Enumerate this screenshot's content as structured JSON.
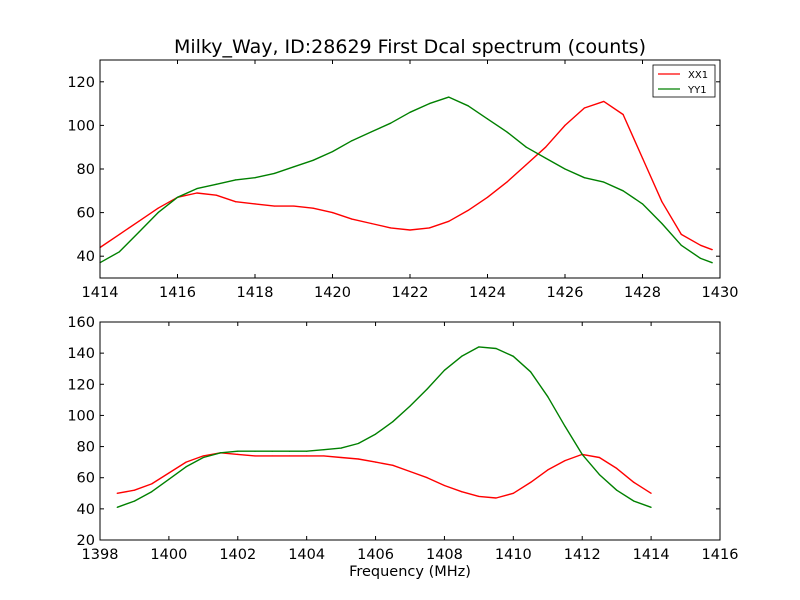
{
  "chart_data": [
    {
      "type": "line",
      "title": "Milky_Way, ID:28629 First Dcal spectrum (counts)",
      "xlabel": "",
      "ylabel": "",
      "xlim": [
        1414,
        1430
      ],
      "ylim": [
        30,
        130
      ],
      "xticks": [
        1414,
        1416,
        1418,
        1420,
        1422,
        1424,
        1426,
        1428,
        1430
      ],
      "yticks": [
        40,
        60,
        80,
        100,
        120
      ],
      "grid": false,
      "legend": "top-right",
      "series": [
        {
          "name": "XX1",
          "color": "#ff0000",
          "x": [
            1414.0,
            1414.5,
            1415.0,
            1415.5,
            1416.0,
            1416.5,
            1417.0,
            1417.5,
            1418.0,
            1418.5,
            1419.0,
            1419.5,
            1420.0,
            1420.5,
            1421.0,
            1421.5,
            1422.0,
            1422.5,
            1423.0,
            1423.5,
            1424.0,
            1424.5,
            1425.0,
            1425.5,
            1426.0,
            1426.5,
            1427.0,
            1427.5,
            1428.0,
            1428.5,
            1429.0,
            1429.5,
            1429.8
          ],
          "values": [
            44,
            50,
            56,
            62,
            67,
            69,
            68,
            65,
            64,
            63,
            63,
            62,
            60,
            57,
            55,
            53,
            52,
            53,
            56,
            61,
            67,
            74,
            82,
            90,
            100,
            108,
            111,
            105,
            85,
            65,
            50,
            45,
            43
          ]
        },
        {
          "name": "YY1",
          "color": "#008000",
          "x": [
            1414.0,
            1414.5,
            1415.0,
            1415.5,
            1416.0,
            1416.5,
            1417.0,
            1417.5,
            1418.0,
            1418.5,
            1419.0,
            1419.5,
            1420.0,
            1420.5,
            1421.0,
            1421.5,
            1422.0,
            1422.5,
            1423.0,
            1423.5,
            1424.0,
            1424.5,
            1425.0,
            1425.5,
            1426.0,
            1426.5,
            1427.0,
            1427.5,
            1428.0,
            1428.5,
            1429.0,
            1429.5,
            1429.8
          ],
          "values": [
            37,
            42,
            51,
            60,
            67,
            71,
            73,
            75,
            76,
            78,
            81,
            84,
            88,
            93,
            97,
            101,
            106,
            110,
            113,
            109,
            103,
            97,
            90,
            85,
            80,
            76,
            74,
            70,
            64,
            55,
            45,
            39,
            37
          ]
        }
      ]
    },
    {
      "type": "line",
      "title": "",
      "xlabel": "Frequency (MHz)",
      "ylabel": "",
      "xlim": [
        1398,
        1416
      ],
      "ylim": [
        20,
        160
      ],
      "xticks": [
        1398,
        1400,
        1402,
        1404,
        1406,
        1408,
        1410,
        1412,
        1414,
        1416
      ],
      "yticks": [
        20,
        40,
        60,
        80,
        100,
        120,
        140,
        160
      ],
      "grid": false,
      "series": [
        {
          "color": "#ff0000",
          "x": [
            1398.5,
            1399.0,
            1399.5,
            1400.0,
            1400.5,
            1401.0,
            1401.5,
            1402.0,
            1402.5,
            1403.0,
            1403.5,
            1404.0,
            1404.5,
            1405.0,
            1405.5,
            1406.0,
            1406.5,
            1407.0,
            1407.5,
            1408.0,
            1408.5,
            1409.0,
            1409.5,
            1410.0,
            1410.5,
            1411.0,
            1411.5,
            1412.0,
            1412.5,
            1413.0,
            1413.5,
            1414.0
          ],
          "values": [
            50,
            52,
            56,
            63,
            70,
            74,
            76,
            75,
            74,
            74,
            74,
            74,
            74,
            73,
            72,
            70,
            68,
            64,
            60,
            55,
            51,
            48,
            47,
            50,
            57,
            65,
            71,
            75,
            73,
            66,
            57,
            50
          ]
        },
        {
          "color": "#008000",
          "x": [
            1398.5,
            1399.0,
            1399.5,
            1400.0,
            1400.5,
            1401.0,
            1401.5,
            1402.0,
            1402.5,
            1403.0,
            1403.5,
            1404.0,
            1404.5,
            1405.0,
            1405.5,
            1406.0,
            1406.5,
            1407.0,
            1407.5,
            1408.0,
            1408.5,
            1409.0,
            1409.5,
            1410.0,
            1410.5,
            1411.0,
            1411.5,
            1412.0,
            1412.5,
            1413.0,
            1413.5,
            1414.0
          ],
          "values": [
            41,
            45,
            51,
            59,
            67,
            73,
            76,
            77,
            77,
            77,
            77,
            77,
            78,
            79,
            82,
            88,
            96,
            106,
            117,
            129,
            138,
            144,
            143,
            138,
            128,
            112,
            93,
            75,
            62,
            52,
            45,
            41
          ]
        }
      ]
    }
  ]
}
